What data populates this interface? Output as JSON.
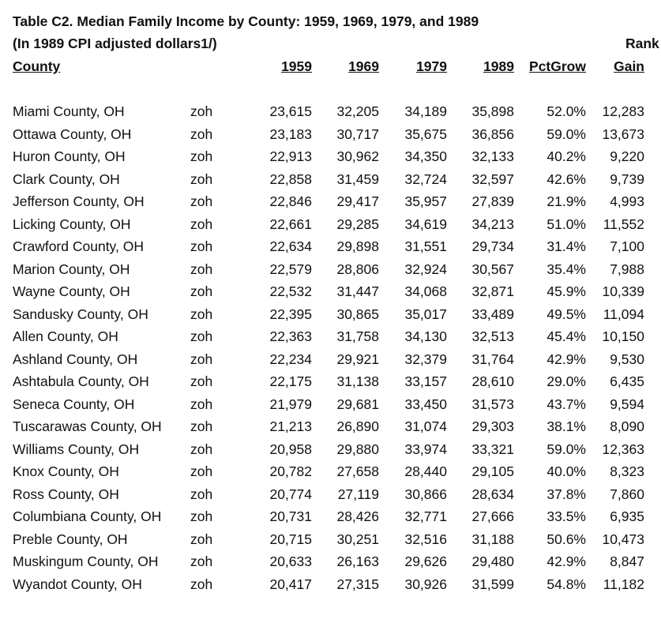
{
  "header": {
    "title": "Table C2. Median Family Income by County: 1959, 1969, 1979, and 1989",
    "subtitle": "(In 1989 CPI adjusted dollars1/)",
    "rank_label": "Rank"
  },
  "table": {
    "columns": [
      "County",
      "1959",
      "1969",
      "1979",
      "1989",
      "PctGrow",
      "Gain"
    ],
    "rows": [
      [
        "Miami County, OH",
        "zoh",
        "23,615",
        "32,205",
        "34,189",
        "35,898",
        "52.0%",
        "12,283"
      ],
      [
        "Ottawa County, OH",
        "zoh",
        "23,183",
        "30,717",
        "35,675",
        "36,856",
        "59.0%",
        "13,673"
      ],
      [
        "Huron County, OH",
        "zoh",
        "22,913",
        "30,962",
        "34,350",
        "32,133",
        "40.2%",
        "9,220"
      ],
      [
        "Clark County, OH",
        "zoh",
        "22,858",
        "31,459",
        "32,724",
        "32,597",
        "42.6%",
        "9,739"
      ],
      [
        "Jefferson County, OH",
        "zoh",
        "22,846",
        "29,417",
        "35,957",
        "27,839",
        "21.9%",
        "4,993"
      ],
      [
        "Licking County, OH",
        "zoh",
        "22,661",
        "29,285",
        "34,619",
        "34,213",
        "51.0%",
        "11,552"
      ],
      [
        "Crawford County, OH",
        "zoh",
        "22,634",
        "29,898",
        "31,551",
        "29,734",
        "31.4%",
        "7,100"
      ],
      [
        "Marion County, OH",
        "zoh",
        "22,579",
        "28,806",
        "32,924",
        "30,567",
        "35.4%",
        "7,988"
      ],
      [
        "Wayne County, OH",
        "zoh",
        "22,532",
        "31,447",
        "34,068",
        "32,871",
        "45.9%",
        "10,339"
      ],
      [
        "Sandusky County, OH",
        "zoh",
        "22,395",
        "30,865",
        "35,017",
        "33,489",
        "49.5%",
        "11,094"
      ],
      [
        "Allen County, OH",
        "zoh",
        "22,363",
        "31,758",
        "34,130",
        "32,513",
        "45.4%",
        "10,150"
      ],
      [
        "Ashland County, OH",
        "zoh",
        "22,234",
        "29,921",
        "32,379",
        "31,764",
        "42.9%",
        "9,530"
      ],
      [
        "Ashtabula County, OH",
        "zoh",
        "22,175",
        "31,138",
        "33,157",
        "28,610",
        "29.0%",
        "6,435"
      ],
      [
        "Seneca County, OH",
        "zoh",
        "21,979",
        "29,681",
        "33,450",
        "31,573",
        "43.7%",
        "9,594"
      ],
      [
        "Tuscarawas County, OH",
        "zoh",
        "21,213",
        "26,890",
        "31,074",
        "29,303",
        "38.1%",
        "8,090"
      ],
      [
        "Williams County, OH",
        "zoh",
        "20,958",
        "29,880",
        "33,974",
        "33,321",
        "59.0%",
        "12,363"
      ],
      [
        "Knox County, OH",
        "zoh",
        "20,782",
        "27,658",
        "28,440",
        "29,105",
        "40.0%",
        "8,323"
      ],
      [
        "Ross County, OH",
        "zoh",
        "20,774",
        "27,119",
        "30,866",
        "28,634",
        "37.8%",
        "7,860"
      ],
      [
        "Columbiana County, OH",
        "zoh",
        "20,731",
        "28,426",
        "32,771",
        "27,666",
        "33.5%",
        "6,935"
      ],
      [
        "Preble County, OH",
        "zoh",
        "20,715",
        "30,251",
        "32,516",
        "31,188",
        "50.6%",
        "10,473"
      ],
      [
        "Muskingum County, OH",
        "zoh",
        "20,633",
        "26,163",
        "29,626",
        "29,480",
        "42.9%",
        "8,847"
      ],
      [
        "Wyandot County, OH",
        "zoh",
        "20,417",
        "27,315",
        "30,926",
        "31,599",
        "54.8%",
        "11,182"
      ]
    ]
  }
}
